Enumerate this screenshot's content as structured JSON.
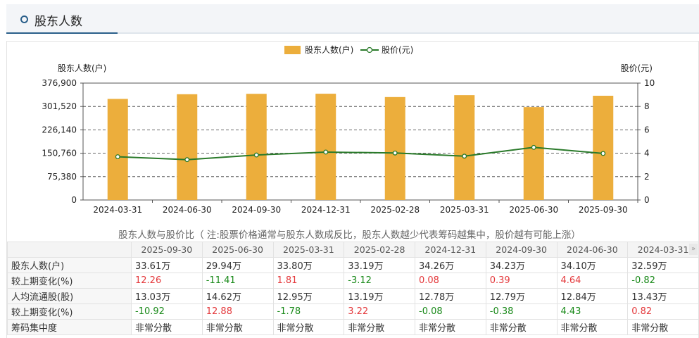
{
  "header": {
    "title": "股东人数"
  },
  "legend": {
    "bar_label": "股东人数(户)",
    "line_label": "股价(元)"
  },
  "chart_data": {
    "type": "bar",
    "categories": [
      "2024-03-31",
      "2024-06-30",
      "2024-09-30",
      "2024-12-31",
      "2025-02-28",
      "2025-03-31",
      "2025-06-30",
      "2025-09-30"
    ],
    "series": [
      {
        "name": "股东人数(户)",
        "type": "bar",
        "axis": "left",
        "color": "#ecae3c",
        "values": [
          325900,
          341000,
          342300,
          342600,
          331900,
          338000,
          299400,
          336100
        ]
      },
      {
        "name": "股价(元)",
        "type": "line",
        "axis": "right",
        "color": "#2a7a2a",
        "values": [
          3.7,
          3.45,
          3.85,
          4.1,
          4.02,
          3.75,
          4.5,
          3.98
        ]
      }
    ],
    "ylabel": "股东人数(户)",
    "y2label": "股价(元)",
    "ylim": [
      0,
      376900
    ],
    "y_ticks": [
      "0",
      "75,380",
      "150,760",
      "226,140",
      "301,520",
      "376,900"
    ],
    "y2lim": [
      0,
      10
    ],
    "y2_ticks": [
      "0",
      "2",
      "4",
      "6",
      "8",
      "10"
    ],
    "grid": true,
    "legend_position": "top-center"
  },
  "subtitle": "股东人数与股价比（ 注:股票价格通常与股东人数成反比，股东人数越少代表筹码越集中，股价越有可能上涨）",
  "table": {
    "columns": [
      "2025-09-30",
      "2025-06-30",
      "2025-03-31",
      "2025-02-28",
      "2024-12-31",
      "2024-09-30",
      "2024-06-30",
      "2024-03-31"
    ],
    "rows": [
      {
        "label": "股东人数(户)",
        "cells": [
          {
            "v": "33.61万",
            "c": ""
          },
          {
            "v": "29.94万",
            "c": ""
          },
          {
            "v": "33.80万",
            "c": ""
          },
          {
            "v": "33.19万",
            "c": ""
          },
          {
            "v": "34.26万",
            "c": ""
          },
          {
            "v": "34.23万",
            "c": ""
          },
          {
            "v": "34.10万",
            "c": ""
          },
          {
            "v": "32.59万",
            "c": ""
          }
        ]
      },
      {
        "label": "较上期变化(%)",
        "cells": [
          {
            "v": "12.26",
            "c": "red"
          },
          {
            "v": "-11.41",
            "c": "green"
          },
          {
            "v": "1.81",
            "c": "red"
          },
          {
            "v": "-3.12",
            "c": "green"
          },
          {
            "v": "0.08",
            "c": "red"
          },
          {
            "v": "0.39",
            "c": "red"
          },
          {
            "v": "4.64",
            "c": "red"
          },
          {
            "v": "-0.82",
            "c": "green"
          }
        ]
      },
      {
        "label": "人均流通股(股)",
        "cells": [
          {
            "v": "13.03万",
            "c": ""
          },
          {
            "v": "14.62万",
            "c": ""
          },
          {
            "v": "12.95万",
            "c": ""
          },
          {
            "v": "13.19万",
            "c": ""
          },
          {
            "v": "12.78万",
            "c": ""
          },
          {
            "v": "12.79万",
            "c": ""
          },
          {
            "v": "12.84万",
            "c": ""
          },
          {
            "v": "13.43万",
            "c": ""
          }
        ]
      },
      {
        "label": "较上期变化(%)",
        "cells": [
          {
            "v": "-10.92",
            "c": "green"
          },
          {
            "v": "12.88",
            "c": "red"
          },
          {
            "v": "-1.78",
            "c": "green"
          },
          {
            "v": "3.22",
            "c": "red"
          },
          {
            "v": "-0.08",
            "c": "green"
          },
          {
            "v": "-0.38",
            "c": "green"
          },
          {
            "v": "4.43",
            "c": "green"
          },
          {
            "v": "0.82",
            "c": "red"
          }
        ]
      },
      {
        "label": "筹码集中度",
        "cells": [
          {
            "v": "非常分散",
            "c": ""
          },
          {
            "v": "非常分散",
            "c": ""
          },
          {
            "v": "非常分散",
            "c": ""
          },
          {
            "v": "非常分散",
            "c": ""
          },
          {
            "v": "非常分散",
            "c": ""
          },
          {
            "v": "非常分散",
            "c": ""
          },
          {
            "v": "非常分散",
            "c": ""
          },
          {
            "v": "非常分散",
            "c": ""
          }
        ]
      }
    ]
  },
  "scroll_icon": "double-chevron-right-icon"
}
